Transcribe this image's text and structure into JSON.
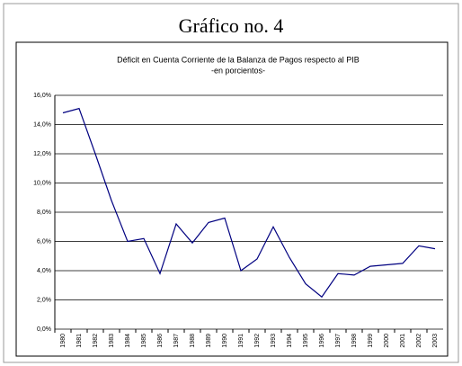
{
  "heading": "Gráfico no. 4",
  "chart_data": {
    "type": "line",
    "title": "Déficit en Cuenta Corriente de la Balanza de Pagos respecto al PIB",
    "subtitle": "-en porcientos-",
    "categories": [
      "1980",
      "1981",
      "1982",
      "1983",
      "1984",
      "1985",
      "1986",
      "1987",
      "1988",
      "1989",
      "1990",
      "1991",
      "1992",
      "1993",
      "1994",
      "1995",
      "1996",
      "1997",
      "1998",
      "1999",
      "2000",
      "2001",
      "2002",
      "2003"
    ],
    "series": [
      {
        "color": "#000080",
        "values": [
          14.8,
          15.1,
          12.0,
          8.8,
          6.0,
          6.2,
          3.8,
          7.2,
          5.9,
          7.3,
          7.6,
          4.0,
          4.8,
          7.0,
          4.9,
          3.1,
          2.2,
          3.8,
          3.7,
          4.3,
          4.4,
          4.5,
          5.7,
          5.5
        ]
      }
    ],
    "ylim": [
      0,
      16
    ],
    "yticks": [
      {
        "value": 0,
        "label": "0,0%"
      },
      {
        "value": 2,
        "label": "2,0%"
      },
      {
        "value": 4,
        "label": "4,0%"
      },
      {
        "value": 6,
        "label": "6,0%"
      },
      {
        "value": 8,
        "label": "8,0%"
      },
      {
        "value": 10,
        "label": "10,0%"
      },
      {
        "value": 12,
        "label": "12,0%"
      },
      {
        "value": 14,
        "label": "14,0%"
      },
      {
        "value": 16,
        "label": "16,0%"
      }
    ],
    "grid": true
  }
}
